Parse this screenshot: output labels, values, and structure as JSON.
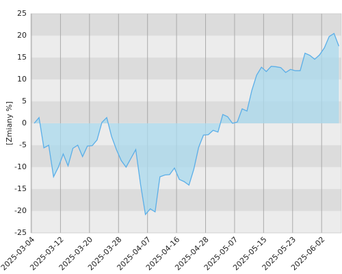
{
  "chart_data": {
    "type": "area",
    "y_label": "[Zmiany %]",
    "categories": [
      "2025-03-04",
      null,
      null,
      null,
      null,
      null,
      "2025-03-12",
      null,
      null,
      null,
      null,
      null,
      "2025-03-20",
      null,
      null,
      null,
      null,
      null,
      "2025-03-28",
      null,
      null,
      null,
      null,
      null,
      "2025-04-07",
      null,
      null,
      null,
      null,
      null,
      "2025-04-16",
      null,
      null,
      null,
      null,
      null,
      "2025-04-28",
      null,
      null,
      null,
      null,
      null,
      "2025-05-07",
      null,
      null,
      null,
      null,
      null,
      "2025-05-15",
      null,
      null,
      null,
      null,
      null,
      "2025-05-23",
      null,
      null,
      null,
      null,
      null,
      "2025-06-02",
      null,
      null,
      null
    ],
    "values": [
      0,
      1.3,
      -5.6,
      -5,
      -12.2,
      -10,
      -7,
      -9.7,
      -5.7,
      -5,
      -7.6,
      -5.2,
      -5.1,
      -3.8,
      0.2,
      1.3,
      -3,
      -6,
      -8.5,
      -10,
      -8,
      -6,
      -14,
      -20.8,
      -19.5,
      -20.2,
      -12.2,
      -11.8,
      -11.7,
      -10.2,
      -12.8,
      -13.3,
      -14.1,
      -10.5,
      -5.5,
      -2.7,
      -2.6,
      -1.6,
      -2,
      2,
      1.5,
      0,
      0.3,
      3.3,
      2.8,
      7.5,
      11,
      12.8,
      11.8,
      13,
      12.9,
      12.7,
      11.6,
      12.3,
      12,
      12,
      16,
      15.5,
      14.6,
      15.6,
      17.2,
      19.8,
      20.5,
      17.6
    ],
    "color": "#5aaee8",
    "fill": "#a9d9ee",
    "ylim": [
      -25,
      25
    ],
    "yticks": [
      -25,
      -20,
      -15,
      -10,
      -5,
      0,
      5,
      10,
      15,
      20,
      25
    ],
    "grid": true
  }
}
